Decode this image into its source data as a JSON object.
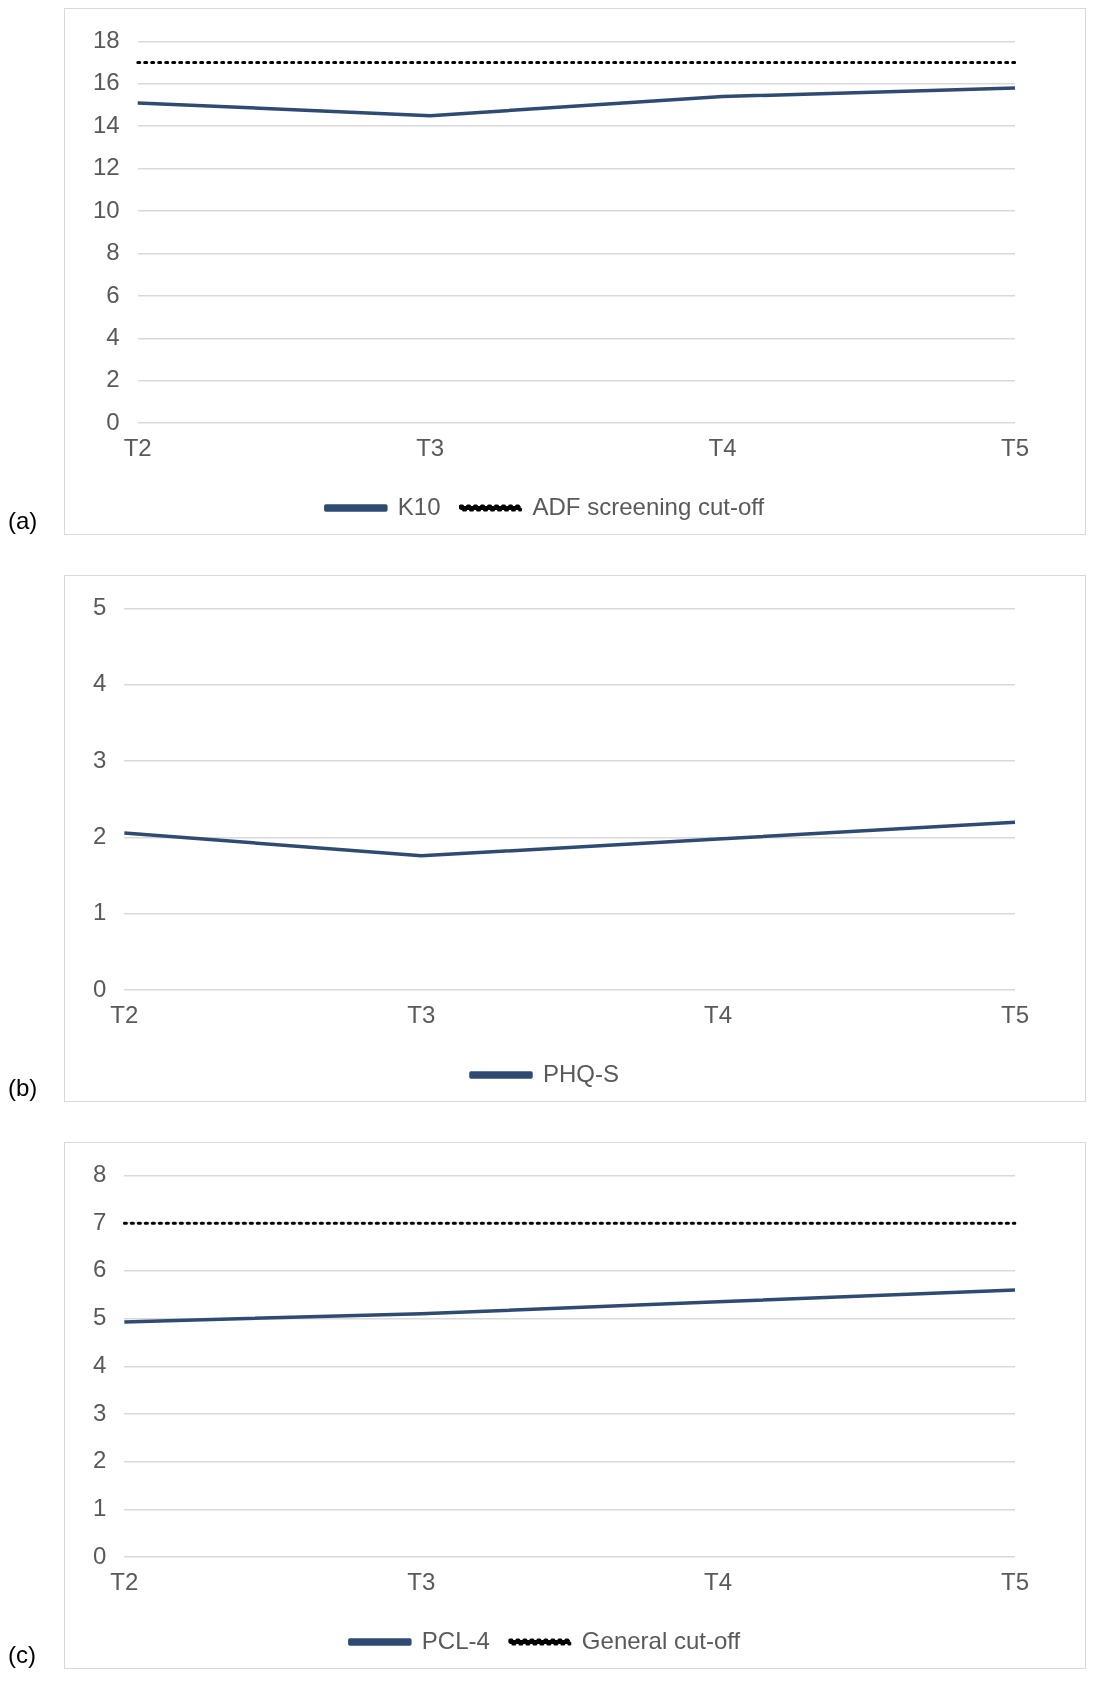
{
  "chart_data": [
    {
      "type": "line",
      "categories": [
        "T2",
        "T3",
        "T4",
        "T5"
      ],
      "series": [
        {
          "name": "K10",
          "color": "#2f4b72",
          "values": [
            15.1,
            14.5,
            15.4,
            15.8
          ]
        },
        {
          "name": "ADF screening cut-off",
          "color": "#000000",
          "values": [
            17,
            17,
            17,
            17
          ],
          "line_style": "dotted"
        }
      ],
      "ylim": [
        0,
        18
      ],
      "yticks": [
        0,
        2,
        4,
        6,
        8,
        10,
        12,
        14,
        16,
        18
      ],
      "grid": "y",
      "legend": "bottom",
      "marker": "none",
      "annotations": [
        "(a)"
      ]
    },
    {
      "type": "line",
      "categories": [
        "T2",
        "T3",
        "T4",
        "T5"
      ],
      "series": [
        {
          "name": "PHQ-S",
          "color": "#2f4b72",
          "values": [
            2.06,
            1.76,
            1.98,
            2.2
          ]
        }
      ],
      "ylim": [
        0,
        5
      ],
      "yticks": [
        0,
        1,
        2,
        3,
        4,
        5
      ],
      "grid": "y",
      "legend": "bottom",
      "marker": "none",
      "annotations": [
        "(b)"
      ]
    },
    {
      "type": "line",
      "categories": [
        "T2",
        "T3",
        "T4",
        "T5"
      ],
      "series": [
        {
          "name": "PCL-4",
          "color": "#2f4b72",
          "values": [
            4.93,
            5.1,
            5.35,
            5.6
          ]
        },
        {
          "name": "General cut-off",
          "color": "#000000",
          "values": [
            7,
            7,
            7,
            7
          ],
          "line_style": "dotted"
        }
      ],
      "ylim": [
        0,
        8
      ],
      "yticks": [
        0,
        1,
        2,
        3,
        4,
        5,
        6,
        7,
        8
      ],
      "grid": "y",
      "legend": "bottom",
      "marker": "none",
      "annotations": [
        "(c)"
      ]
    }
  ]
}
